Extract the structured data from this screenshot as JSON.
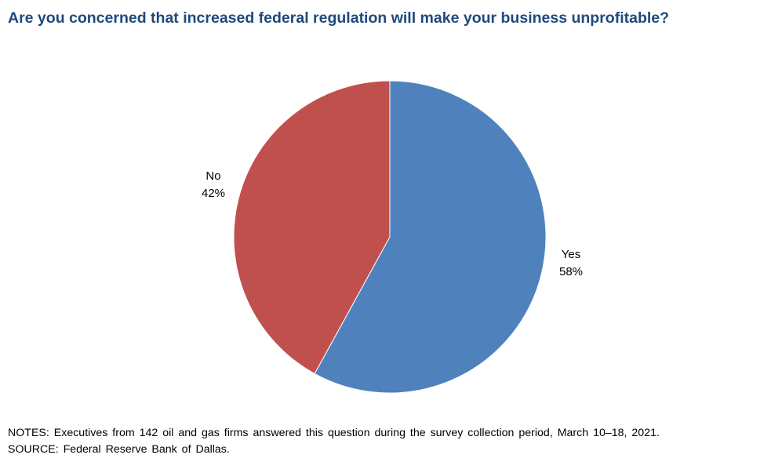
{
  "title": "Are you concerned that increased federal regulation will make your business unprofitable?",
  "colors": {
    "title": "#1F497D",
    "yes": "#4F81BD",
    "no": "#C0504D",
    "separator": "#ffffff"
  },
  "chart_data": {
    "type": "pie",
    "title": "Are you concerned that increased federal regulation will make your business unprofitable?",
    "slices": [
      {
        "label": "Yes",
        "value": 58,
        "value_label": "58%",
        "color": "#4F81BD"
      },
      {
        "label": "No",
        "value": 42,
        "value_label": "42%",
        "color": "#C0504D"
      }
    ],
    "start_angle_note": "first slice begins at 12 o'clock, clockwise"
  },
  "notes": [
    "NOTES: Executives from 142 oil and gas firms answered this question during the survey collection period, March 10–18, 2021.",
    "SOURCE: Federal Reserve Bank of Dallas."
  ]
}
